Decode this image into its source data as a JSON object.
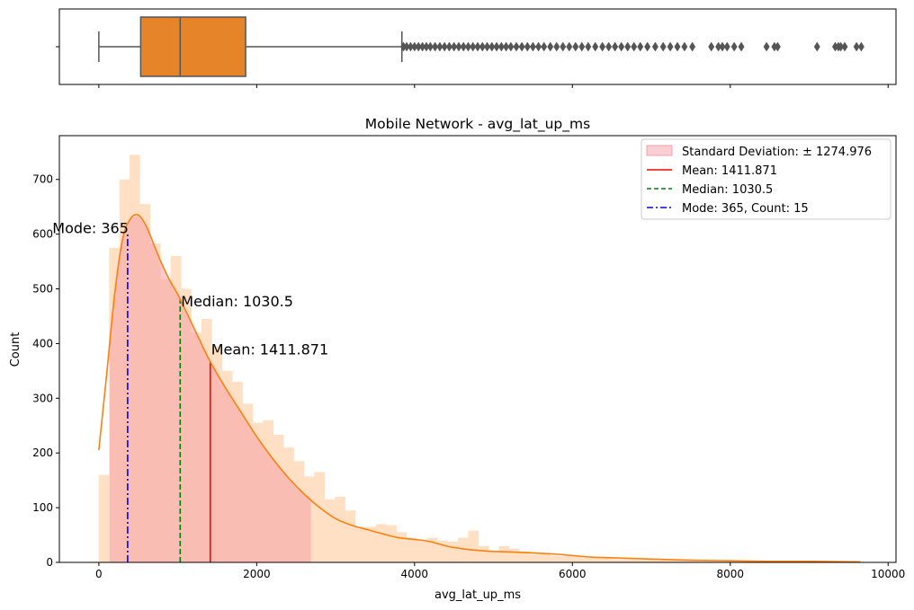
{
  "figure": {
    "title": "Mobile Network - avg_lat_up_ms",
    "xlabel": "avg_lat_up_ms",
    "ylabel": "Count"
  },
  "colors": {
    "box_fill": "#e6842a",
    "box_edge": "#555555",
    "hist_fill": "#ffe0c4",
    "std_band": "#f4a0a8",
    "kde_line": "#ff7f0e",
    "mean_line": "#ff0000",
    "median_line": "#008000",
    "mode_line": "#0000ff"
  },
  "chart_data": [
    {
      "type": "boxplot",
      "orientation": "horizontal",
      "whisker_low": 0,
      "q1": 530,
      "median": 1030.5,
      "q3": 1860,
      "whisker_high": 3840,
      "xlim": [
        -500,
        10100
      ],
      "x_ticks_shared": [
        0,
        2000,
        4000,
        6000,
        8000,
        10000
      ],
      "outliers": [
        3860,
        3900,
        3950,
        4000,
        4050,
        4100,
        4150,
        4200,
        4260,
        4320,
        4380,
        4440,
        4500,
        4560,
        4620,
        4680,
        4740,
        4800,
        4860,
        4920,
        4980,
        5040,
        5100,
        5160,
        5220,
        5290,
        5360,
        5430,
        5500,
        5570,
        5640,
        5720,
        5800,
        5880,
        5960,
        6040,
        6120,
        6200,
        6290,
        6380,
        6460,
        6540,
        6620,
        6700,
        6780,
        6860,
        6950,
        7050,
        7150,
        7240,
        7330,
        7420,
        7520,
        7760,
        7850,
        7900,
        7960,
        8050,
        8140,
        8460,
        8560,
        8600,
        9100,
        9330,
        9370,
        9400,
        9450,
        9600,
        9660
      ]
    },
    {
      "type": "histogram",
      "title": "Mobile Network - avg_lat_up_ms",
      "xlabel": "avg_lat_up_ms",
      "ylabel": "Count",
      "xlim": [
        -500,
        10100
      ],
      "ylim": [
        0,
        780
      ],
      "x_ticks": [
        0,
        2000,
        4000,
        6000,
        8000,
        10000
      ],
      "y_ticks": [
        0,
        100,
        200,
        300,
        400,
        500,
        600,
        700
      ],
      "bin_width": 130,
      "bins_start": 0,
      "counts": [
        160,
        575,
        700,
        745,
        655,
        583,
        517,
        560,
        500,
        420,
        445,
        395,
        350,
        330,
        290,
        255,
        260,
        233,
        210,
        185,
        157,
        165,
        115,
        120,
        95,
        65,
        65,
        70,
        68,
        55,
        45,
        40,
        45,
        40,
        38,
        45,
        58,
        30,
        20,
        30,
        25,
        20,
        15,
        15,
        12,
        12,
        10,
        8,
        8,
        7,
        6,
        6,
        5,
        5,
        4,
        4,
        4,
        3,
        3,
        3,
        3,
        2,
        2,
        2,
        2,
        2,
        2,
        2,
        2,
        1,
        1,
        1,
        1,
        1
      ],
      "kde": {
        "x": [
          0,
          100,
          200,
          300,
          400,
          500,
          600,
          700,
          800,
          900,
          1000,
          1100,
          1200,
          1400,
          1600,
          1800,
          2000,
          2200,
          2400,
          2600,
          2800,
          3000,
          3200,
          3400,
          3600,
          3800,
          4000,
          4200,
          4400,
          4600,
          4800,
          5000,
          5400,
          5800,
          6200,
          6600,
          7000,
          7500,
          8000,
          8500,
          9000,
          9650
        ],
        "y": [
          205,
          345,
          490,
          590,
          628,
          635,
          615,
          580,
          545,
          515,
          490,
          460,
          430,
          370,
          320,
          275,
          230,
          190,
          155,
          125,
          100,
          80,
          68,
          60,
          52,
          45,
          42,
          38,
          30,
          25,
          22,
          20,
          18,
          15,
          10,
          8,
          6,
          4,
          3,
          2,
          2,
          1
        ]
      },
      "std_band": [
        136.895,
        2686.847
      ],
      "mean": 1411.871,
      "median": 1030.5,
      "mode": 365,
      "mode_count": 15,
      "mode_line_height": 600,
      "annotations": {
        "mode": "Mode: 365",
        "median": "Median: 1030.5",
        "mean": "Mean: 1411.871"
      },
      "legend": {
        "position": "upper right",
        "entries": [
          "Standard Deviation: ± 1274.976",
          "Mean: 1411.871",
          "Median: 1030.5",
          "Mode: 365, Count: 15"
        ]
      }
    }
  ]
}
